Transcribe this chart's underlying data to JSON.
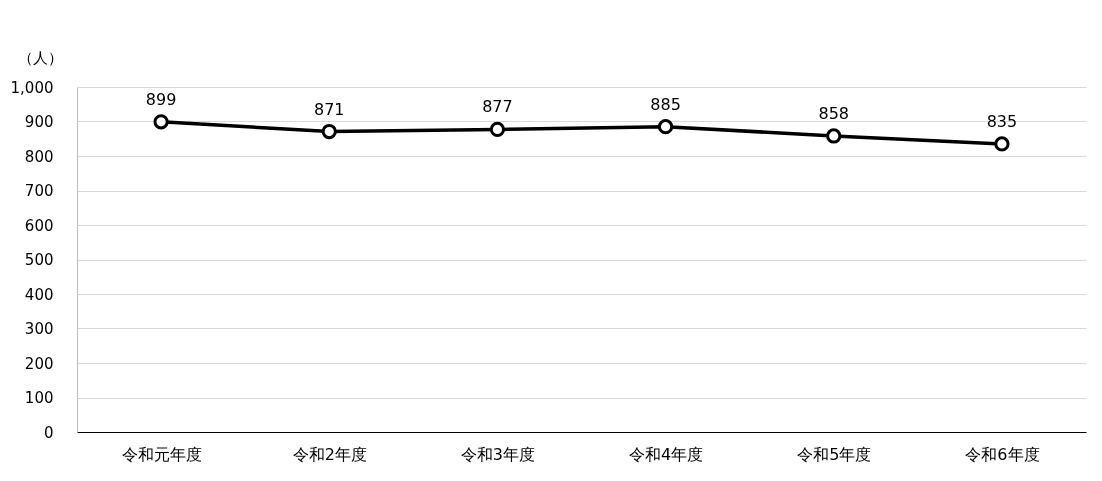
{
  "chart_data": {
    "type": "line",
    "ylabel": "（人）",
    "categories": [
      "令和元年度",
      "令和2年度",
      "令和3年度",
      "令和4年度",
      "令和5年度",
      "令和6年度"
    ],
    "series": [
      {
        "color": "#000000",
        "values": [
          899,
          871,
          877,
          885,
          858,
          835
        ]
      }
    ],
    "ylim": [
      0,
      1000
    ],
    "yticks": [
      0,
      100,
      200,
      300,
      400,
      500,
      600,
      700,
      800,
      900,
      {
        "value": 1000,
        "label": "1,000"
      }
    ],
    "grid": "y",
    "marker": "circle",
    "line_style": "solid",
    "data_labels": true,
    "legend": false
  }
}
